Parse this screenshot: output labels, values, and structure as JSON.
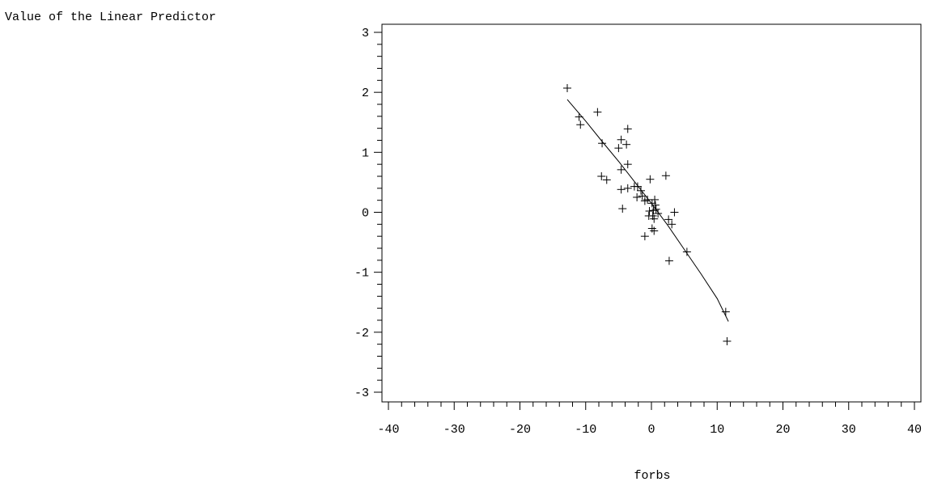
{
  "chart_data": {
    "type": "scatter",
    "title": "",
    "xlabel": "forbs",
    "ylabel": "Value of the Linear Predictor",
    "xlim": [
      -40,
      40
    ],
    "ylim": [
      -3,
      3
    ],
    "x_ticks": [
      -40,
      -30,
      -20,
      -10,
      0,
      10,
      20,
      30,
      40
    ],
    "x_tick_labels": [
      "-40",
      "-30",
      "-20",
      "-10",
      "0",
      "10",
      "20",
      "30",
      "40"
    ],
    "x_minor_step": 2,
    "y_ticks": [
      -3,
      -2,
      -1,
      0,
      1,
      2,
      3
    ],
    "y_tick_labels": [
      "-3",
      "-2",
      "-1",
      "0",
      "1",
      "2",
      "3"
    ],
    "y_minor_step": 0.2,
    "marker": "+",
    "grid": false,
    "series": [
      {
        "kind": "points",
        "points": [
          [
            -12.8,
            2.07
          ],
          [
            -11.0,
            1.59
          ],
          [
            -10.8,
            1.46
          ],
          [
            -8.2,
            1.67
          ],
          [
            -7.5,
            1.15
          ],
          [
            -5.0,
            1.07
          ],
          [
            -4.6,
            1.21
          ],
          [
            -3.6,
            1.39
          ],
          [
            -3.8,
            1.13
          ],
          [
            -3.6,
            0.8
          ],
          [
            -4.6,
            0.71
          ],
          [
            -7.6,
            0.6
          ],
          [
            -6.8,
            0.54
          ],
          [
            -4.6,
            0.38
          ],
          [
            -3.6,
            0.4
          ],
          [
            -2.6,
            0.43
          ],
          [
            -2.1,
            0.43
          ],
          [
            -1.6,
            0.36
          ],
          [
            -2.2,
            0.25
          ],
          [
            -1.4,
            0.27
          ],
          [
            -1.0,
            0.19
          ],
          [
            -0.6,
            0.21
          ],
          [
            -0.2,
            0.55
          ],
          [
            2.2,
            0.61
          ],
          [
            -4.4,
            0.06
          ],
          [
            0.1,
            0.15
          ],
          [
            0.5,
            0.21
          ],
          [
            0.6,
            0.12
          ],
          [
            -0.3,
            0.02
          ],
          [
            0.3,
            0.03
          ],
          [
            0.7,
            0.05
          ],
          [
            1.0,
            -0.02
          ],
          [
            -0.4,
            -0.06
          ],
          [
            0.2,
            -0.06
          ],
          [
            0.4,
            -0.11
          ],
          [
            2.6,
            -0.12
          ],
          [
            3.5,
            0.0
          ],
          [
            3.1,
            -0.2
          ],
          [
            0.1,
            -0.27
          ],
          [
            0.4,
            -0.31
          ],
          [
            -1.0,
            -0.4
          ],
          [
            2.7,
            -0.81
          ],
          [
            5.4,
            -0.66
          ],
          [
            11.3,
            -1.66
          ],
          [
            11.5,
            -2.15
          ]
        ]
      },
      {
        "kind": "line",
        "points": [
          [
            -12.8,
            1.88
          ],
          [
            -10.0,
            1.52
          ],
          [
            -7.5,
            1.18
          ],
          [
            -5.0,
            0.85
          ],
          [
            -2.5,
            0.5
          ],
          [
            0.0,
            0.15
          ],
          [
            2.5,
            -0.22
          ],
          [
            5.0,
            -0.62
          ],
          [
            7.5,
            -1.02
          ],
          [
            10.0,
            -1.44
          ],
          [
            11.7,
            -1.82
          ]
        ]
      }
    ]
  }
}
